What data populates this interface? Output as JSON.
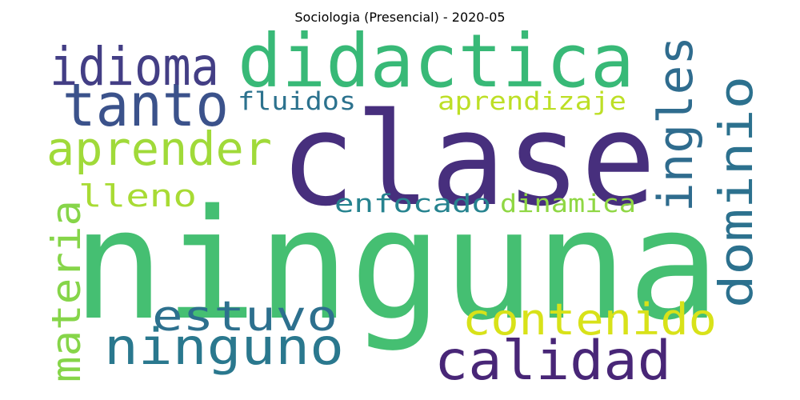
{
  "title": "Sociologia (Presencial) - 2020-05",
  "words": [
    {
      "text": "ninguna",
      "color": "#45bf72"
    },
    {
      "text": "clase",
      "color": "#472f7d"
    },
    {
      "text": "didactica",
      "color": "#38b977"
    },
    {
      "text": "tanto",
      "color": "#3b528b"
    },
    {
      "text": "idioma",
      "color": "#433e85"
    },
    {
      "text": "aprender",
      "color": "#a0da39"
    },
    {
      "text": "fluidos",
      "color": "#2c728e"
    },
    {
      "text": "aprendizaje",
      "color": "#bddf26"
    },
    {
      "text": "ingles",
      "color": "#2f6c8e"
    },
    {
      "text": "dominio",
      "color": "#2c718e"
    },
    {
      "text": "lleno",
      "color": "#a8db34"
    },
    {
      "text": "enfocado",
      "color": "#26838f"
    },
    {
      "text": "dinamica",
      "color": "#8fd744"
    },
    {
      "text": "materia",
      "color": "#86d549"
    },
    {
      "text": "estuvo",
      "color": "#2d708e"
    },
    {
      "text": "contenido",
      "color": "#d8e219"
    },
    {
      "text": "ninguno",
      "color": "#2a788e"
    },
    {
      "text": "calidad",
      "color": "#482677"
    }
  ]
}
